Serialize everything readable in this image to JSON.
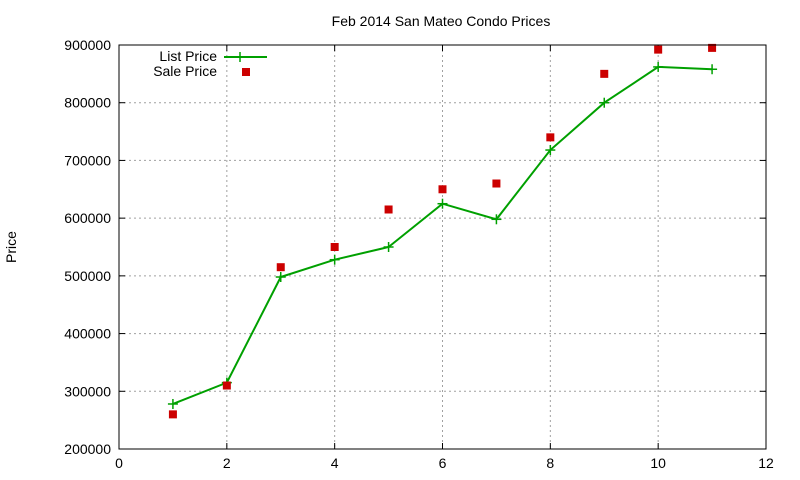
{
  "chart_data": {
    "type": "line",
    "title": "Feb 2014 San Mateo Condo Prices",
    "xlabel": "",
    "ylabel": "Price",
    "xlim": [
      0,
      12
    ],
    "ylim": [
      200000,
      900000
    ],
    "xticks": [
      0,
      2,
      4,
      6,
      8,
      10,
      12
    ],
    "yticks": [
      200000,
      300000,
      400000,
      500000,
      600000,
      700000,
      800000,
      900000
    ],
    "grid": true,
    "legend_position": "top-left",
    "series": [
      {
        "name": "List Price",
        "style": "line+cross",
        "color": "#00a000",
        "x": [
          1,
          2,
          3,
          4,
          5,
          6,
          7,
          8,
          9,
          10,
          11
        ],
        "y": [
          278000,
          315000,
          498000,
          528000,
          550000,
          625000,
          598000,
          718000,
          800000,
          862000,
          858000
        ]
      },
      {
        "name": "Sale Price",
        "style": "square",
        "color": "#cc0000",
        "x": [
          1,
          2,
          3,
          4,
          5,
          6,
          7,
          8,
          9,
          10,
          11
        ],
        "y": [
          260000,
          310000,
          515000,
          550000,
          615000,
          650000,
          660000,
          740000,
          850000,
          892000,
          895000
        ]
      }
    ]
  }
}
